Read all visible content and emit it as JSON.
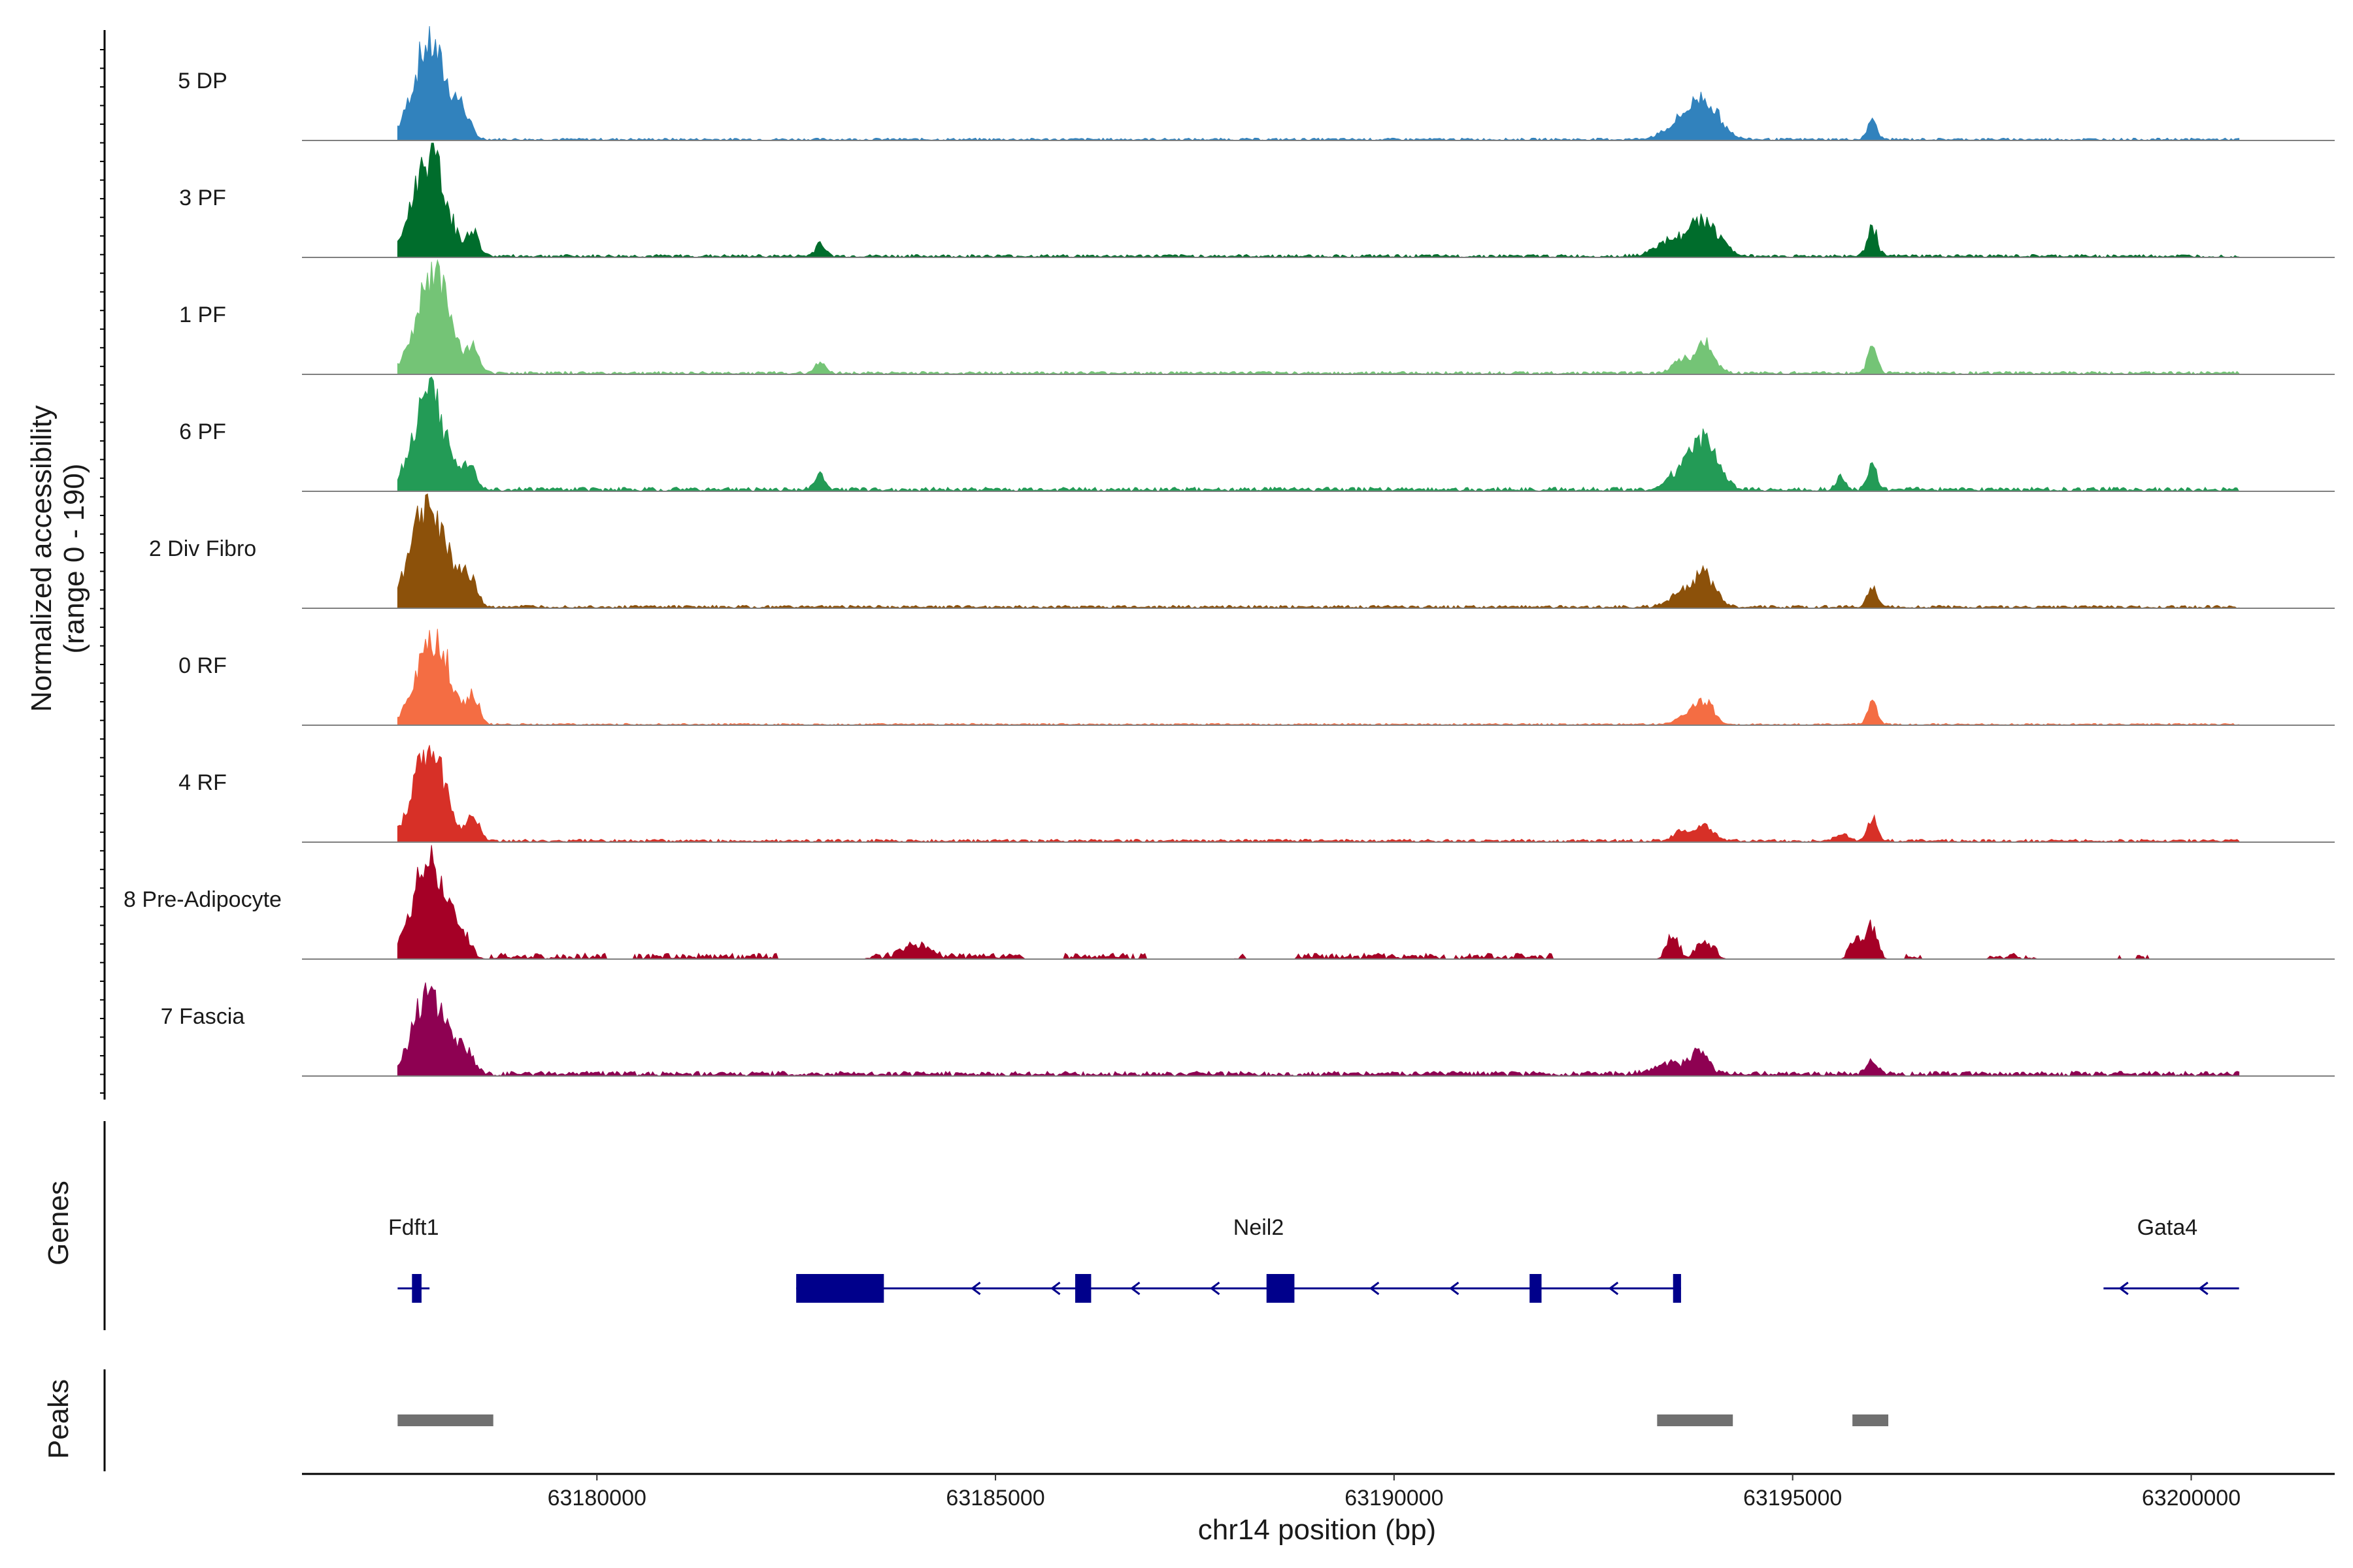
{
  "chart_data": {
    "type": "area",
    "title": "",
    "xlabel": "chr14 position (bp)",
    "ylabel": "Normalized accessibility",
    "ylabel_sub": "(range 0 - 190)",
    "y_range": [
      0,
      190
    ],
    "x_range": [
      63176300,
      63201800
    ],
    "x_ticks": [
      63180000,
      63185000,
      63190000,
      63195000,
      63200000
    ],
    "x_tick_labels": [
      "63180000",
      "63185000",
      "63190000",
      "63195000",
      "63200000"
    ],
    "series": [
      {
        "name": "5 DP",
        "color": "#3182BD",
        "peaks": [
          [
            63177900,
            160,
            200
          ],
          [
            63178300,
            40,
            100
          ],
          [
            63193900,
            60,
            180
          ],
          [
            63193600,
            25,
            200
          ],
          [
            63196000,
            32,
            60
          ]
        ],
        "noise": 4,
        "sparse": false
      },
      {
        "name": "3 PF",
        "color": "#006D2C",
        "peaks": [
          [
            63177900,
            170,
            200
          ],
          [
            63178450,
            40,
            70
          ],
          [
            63182800,
            22,
            60
          ],
          [
            63193900,
            55,
            180
          ],
          [
            63193500,
            25,
            200
          ],
          [
            63196000,
            50,
            60
          ]
        ],
        "noise": 5,
        "sparse": false
      },
      {
        "name": "1 PF",
        "color": "#74C476",
        "peaks": [
          [
            63177950,
            165,
            200
          ],
          [
            63178450,
            40,
            70
          ],
          [
            63182800,
            20,
            60
          ],
          [
            63193900,
            50,
            120
          ],
          [
            63193600,
            22,
            100
          ],
          [
            63196000,
            45,
            60
          ]
        ],
        "noise": 5,
        "sparse": false
      },
      {
        "name": "6 PF",
        "color": "#239B56",
        "peaks": [
          [
            63177900,
            155,
            200
          ],
          [
            63178400,
            40,
            80
          ],
          [
            63182800,
            28,
            60
          ],
          [
            63193900,
            80,
            160
          ],
          [
            63193600,
            30,
            150
          ],
          [
            63196000,
            45,
            60
          ],
          [
            63195600,
            20,
            50
          ]
        ],
        "noise": 7,
        "sparse": false
      },
      {
        "name": "2 Div Fibro",
        "color": "#8C510A",
        "peaks": [
          [
            63177900,
            175,
            220
          ],
          [
            63178400,
            45,
            90
          ],
          [
            63193900,
            55,
            130
          ],
          [
            63193600,
            25,
            140
          ],
          [
            63196000,
            35,
            60
          ]
        ],
        "noise": 5,
        "sparse": false
      },
      {
        "name": "0 RF",
        "color": "#F46D43",
        "peaks": [
          [
            63177950,
            150,
            200
          ],
          [
            63178450,
            45,
            70
          ],
          [
            63193900,
            35,
            110
          ],
          [
            63193700,
            15,
            140
          ],
          [
            63196000,
            35,
            60
          ]
        ],
        "noise": 3,
        "sparse": false
      },
      {
        "name": "4 RF",
        "color": "#D73027",
        "peaks": [
          [
            63177900,
            150,
            200
          ],
          [
            63178450,
            35,
            80
          ],
          [
            63193900,
            30,
            100
          ],
          [
            63193600,
            15,
            100
          ],
          [
            63195600,
            12,
            80
          ],
          [
            63196000,
            40,
            60
          ]
        ],
        "noise": 5,
        "sparse": false
      },
      {
        "name": "8 Pre-Adipocyte",
        "color": "#A50026",
        "peaks": [
          [
            63177900,
            155,
            200
          ],
          [
            63178300,
            30,
            100
          ],
          [
            63184000,
            18,
            150
          ],
          [
            63193500,
            35,
            70
          ],
          [
            63193900,
            25,
            100
          ],
          [
            63195800,
            30,
            70
          ],
          [
            63196000,
            55,
            60
          ]
        ],
        "noise": 10,
        "sparse": true
      },
      {
        "name": "7 Fascia",
        "color": "#8E0152",
        "peaks": [
          [
            63177900,
            135,
            200
          ],
          [
            63178350,
            35,
            100
          ],
          [
            63193850,
            35,
            100
          ],
          [
            63193500,
            20,
            200
          ],
          [
            63196000,
            20,
            70
          ]
        ],
        "noise": 8,
        "sparse": false
      }
    ],
    "genes": {
      "title": "Genes",
      "items": [
        {
          "name": "Fdft1",
          "start": 63177500,
          "end": 63177900,
          "strand": "-",
          "exons": [
            [
              63177680,
              63177800
            ]
          ],
          "label_x": 63177700
        },
        {
          "name": "Neil2",
          "start": 63182500,
          "end": 63193600,
          "strand": "-",
          "exons": [
            [
              63182500,
              63183600
            ],
            [
              63186000,
              63186200
            ],
            [
              63188400,
              63188750
            ],
            [
              63191700,
              63191850
            ],
            [
              63193500,
              63193600
            ]
          ],
          "label_x": 63188300
        },
        {
          "name": "Gata4",
          "start": 63198900,
          "end": 63200600,
          "strand": "-",
          "exons": [],
          "label_x": 63199700
        }
      ]
    },
    "peaks_track": {
      "title": "Peaks",
      "ranges": [
        [
          63177500,
          63178700
        ],
        [
          63193300,
          63194250
        ],
        [
          63195750,
          63196200
        ]
      ]
    },
    "colors": {
      "gene": "#00008B",
      "peak_bar": "#707070",
      "baseline": "#7f7f7f"
    }
  }
}
